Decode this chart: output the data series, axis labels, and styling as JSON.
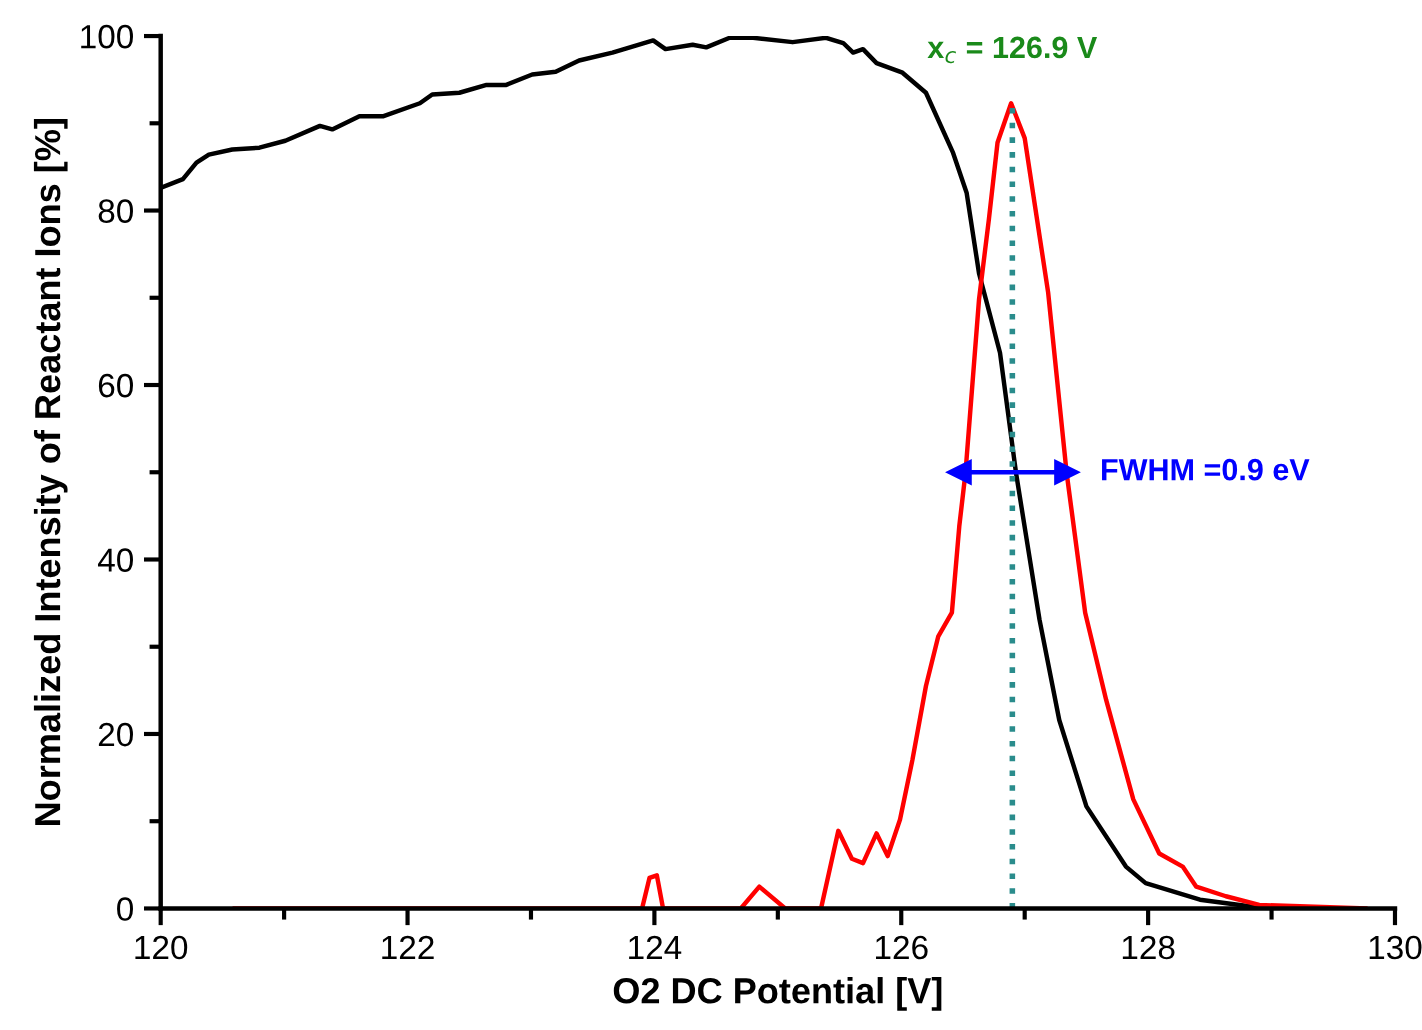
{
  "chart_data": {
    "type": "line",
    "xlabel": "O2 DC Potential [V]",
    "ylabel": "Normalized Intensity of Reactant Ions [%]",
    "xlim": [
      120,
      130
    ],
    "xticks": [
      120,
      122,
      124,
      126,
      128,
      130
    ],
    "ylim": [
      0,
      100
    ],
    "yticks": [
      0,
      20,
      40,
      60,
      80,
      100
    ],
    "grid": false,
    "legend": false,
    "line_style": "solid",
    "marker": "none",
    "series": [
      {
        "color": "#000000",
        "x": [
          120,
          120.18,
          120.29,
          120.39,
          120.58,
          120.8,
          121.01,
          121.29,
          121.39,
          121.61,
          121.8,
          122.1,
          122.2,
          122.42,
          122.64,
          122.8,
          123.01,
          123.2,
          123.39,
          123.66,
          123.99,
          124.09,
          124.31,
          124.42,
          124.61,
          124.8,
          125.12,
          125.39,
          125.53,
          125.61,
          125.69,
          125.8,
          126.01,
          126.2,
          126.42,
          126.53,
          126.63,
          126.8,
          126.93,
          127.12,
          127.28,
          127.5,
          127.82,
          127.98,
          128.42,
          128.85,
          129.0
        ],
        "values": [
          82.6,
          83.6,
          85.5,
          86.4,
          87,
          87.2,
          88,
          89.7,
          89.3,
          90.8,
          90.8,
          92.3,
          93.3,
          93.5,
          94.4,
          94.4,
          95.6,
          95.9,
          97.2,
          98.1,
          99.5,
          98.5,
          99,
          98.7,
          99.8,
          99.8,
          99.3,
          99.8,
          99.2,
          98.1,
          98.5,
          96.9,
          95.8,
          93.5,
          86.6,
          82,
          72.8,
          63.7,
          49.9,
          33.1,
          21.6,
          11.7,
          4.8,
          2.9,
          1,
          0.2,
          0
        ]
      },
      {
        "color": "#ff0000",
        "x": [
          120.6,
          123.9,
          123.96,
          124.02,
          124.07,
          124.7,
          124.85,
          125.06,
          125.35,
          125.49,
          125.6,
          125.69,
          125.8,
          125.89,
          125.99,
          126.09,
          126.2,
          126.3,
          126.41,
          126.47,
          126.52,
          126.63,
          126.71,
          126.78,
          126.89,
          127.0,
          127.19,
          127.34,
          127.49,
          127.66,
          127.88,
          128.09,
          128.28,
          128.39,
          128.63,
          128.9,
          129.76
        ],
        "values": [
          0,
          0,
          3.5,
          3.8,
          0,
          0,
          2.5,
          0,
          0,
          8.9,
          5.7,
          5.2,
          8.6,
          6,
          10.2,
          17,
          25.5,
          31.2,
          33.9,
          43.8,
          49.9,
          69.8,
          79,
          87.8,
          92.3,
          88.3,
          70.6,
          49.9,
          33.9,
          23.9,
          12.5,
          6.3,
          4.8,
          2.5,
          1.4,
          0.4,
          0
        ]
      },
      {
        "color": "#2a8c8c",
        "line_style": "dotted",
        "x": [
          126.9,
          126.9
        ],
        "values": [
          0,
          92.3
        ]
      },
      {
        "color": "#0000ff",
        "marker": "triangle",
        "x": [
          126.47,
          127.34
        ],
        "values": [
          50,
          50
        ]
      }
    ],
    "annotations": [
      {
        "text": "x$_{c}$ = 126.9 V",
        "x": 126.9,
        "y": 92.3
      },
      {
        "text": "FWHM =0.9 eV",
        "x": 127.34,
        "y": 50
      }
    ]
  }
}
